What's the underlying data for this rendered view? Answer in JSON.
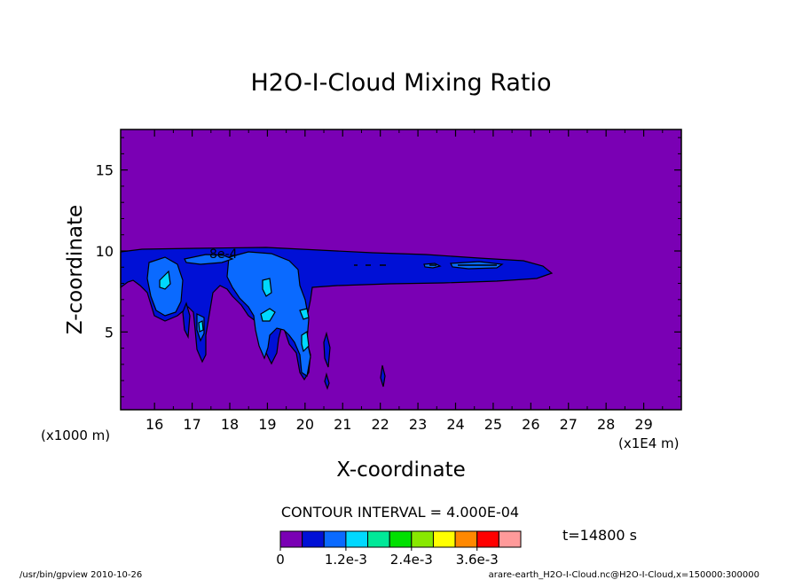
{
  "chart_data": {
    "type": "heatmap",
    "title": "H2O-I-Cloud Mixing Ratio",
    "xlabel": "X-coordinate",
    "ylabel": "Z-coordinate",
    "x_unit_left": "(x1000 m)",
    "x_unit_right": "(x1E4 m)",
    "xlim": [
      15.1,
      30
    ],
    "ylim": [
      0.2,
      17.5
    ],
    "x_ticks": [
      16,
      17,
      18,
      19,
      20,
      21,
      22,
      23,
      24,
      25,
      26,
      27,
      28,
      29
    ],
    "y_ticks": [
      5,
      10,
      15
    ],
    "contour_label": "8e-4",
    "contour_interval_text": "CONTOUR INTERVAL = 4.000E-04",
    "time_text": "t=14800 s",
    "colorbar": {
      "colors": [
        "#7a00b4",
        "#0010d6",
        "#0a6aff",
        "#00d8ff",
        "#00e898",
        "#00e000",
        "#88e800",
        "#ffff00",
        "#ff8800",
        "#ff0000",
        "#ff9a9a"
      ],
      "tick_labels": [
        "0",
        "1.2e-3",
        "2.4e-3",
        "3.6e-3"
      ]
    },
    "footer_left": "/usr/bin/gpview   2010-10-26",
    "footer_right": "arare-earth_H2O-I-Cloud.nc@H2O-I-Cloud,x=150000:300000",
    "colors": {
      "background": "#7a00b4",
      "level1": "#0010d6",
      "level2": "#0a6aff",
      "level3": "#00d8ff"
    }
  }
}
